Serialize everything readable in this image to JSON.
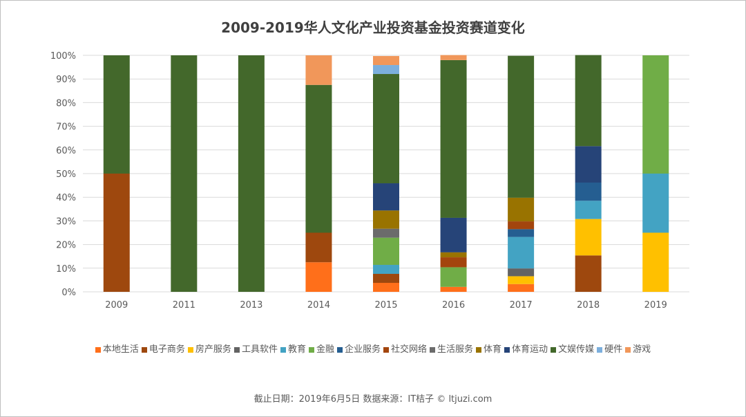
{
  "chart_data": {
    "type": "bar",
    "stacked": true,
    "percent": true,
    "title": "2009-2019华人文化产业投资基金投资赛道变化",
    "categories": [
      "2009",
      "2011",
      "2013",
      "2014",
      "2015",
      "2016",
      "2017",
      "2018",
      "2019"
    ],
    "ylim": [
      0,
      100
    ],
    "yticks": [
      "0%",
      "10%",
      "20%",
      "30%",
      "40%",
      "50%",
      "60%",
      "70%",
      "80%",
      "90%",
      "100%"
    ],
    "grid": true,
    "legend_position": "bottom",
    "series": [
      {
        "name": "本地生活",
        "color": "#FF6F1A",
        "values": [
          0,
          0,
          0,
          12.5,
          3.8,
          2.1,
          3.3,
          0,
          0
        ]
      },
      {
        "name": "电子商务",
        "color": "#9E480E",
        "values": [
          50,
          0,
          0,
          12.5,
          3.8,
          0,
          0,
          15.4,
          0
        ]
      },
      {
        "name": "房产服务",
        "color": "#FFC000",
        "values": [
          0,
          0,
          0,
          0,
          0,
          0,
          3.3,
          15.4,
          25
        ]
      },
      {
        "name": "工具软件",
        "color": "#636363",
        "values": [
          0,
          0,
          0,
          0,
          0,
          0,
          3.3,
          0,
          0
        ]
      },
      {
        "name": "教育",
        "color": "#43A3C3",
        "values": [
          0,
          0,
          0,
          0,
          3.8,
          0,
          13.3,
          7.7,
          25
        ]
      },
      {
        "name": "金融",
        "color": "#70AD47",
        "values": [
          0,
          0,
          0,
          0,
          11.5,
          8.3,
          0,
          0,
          50
        ]
      },
      {
        "name": "企业服务",
        "color": "#255E91",
        "values": [
          0,
          0,
          0,
          0,
          0,
          0,
          3.3,
          7.7,
          0
        ]
      },
      {
        "name": "社交网络",
        "color": "#A3450D",
        "values": [
          0,
          0,
          0,
          0,
          0,
          4.2,
          3.3,
          0,
          0
        ]
      },
      {
        "name": "生活服务",
        "color": "#6B6B6B",
        "values": [
          0,
          0,
          0,
          0,
          3.8,
          0,
          0,
          0,
          0
        ]
      },
      {
        "name": "体育",
        "color": "#997300",
        "values": [
          0,
          0,
          0,
          0,
          7.7,
          2.1,
          10,
          0,
          0
        ]
      },
      {
        "name": "体育运动",
        "color": "#264478",
        "values": [
          0,
          0,
          0,
          0,
          11.5,
          14.6,
          0,
          15.4,
          0
        ]
      },
      {
        "name": "文娱传媒",
        "color": "#43682B",
        "values": [
          50,
          100,
          100,
          62.5,
          46.2,
          66.7,
          60,
          38.5,
          0
        ]
      },
      {
        "name": "硬件",
        "color": "#7CAFDD",
        "values": [
          0,
          0,
          0,
          0,
          3.8,
          0,
          0,
          0,
          0
        ]
      },
      {
        "name": "游戏",
        "color": "#F1975A",
        "values": [
          0,
          0,
          0,
          12.5,
          3.8,
          2.1,
          0,
          0,
          0
        ]
      }
    ]
  },
  "footer": "截止日期：2019年6月5日    数据来源：IT桔子 © ltjuzi.com"
}
